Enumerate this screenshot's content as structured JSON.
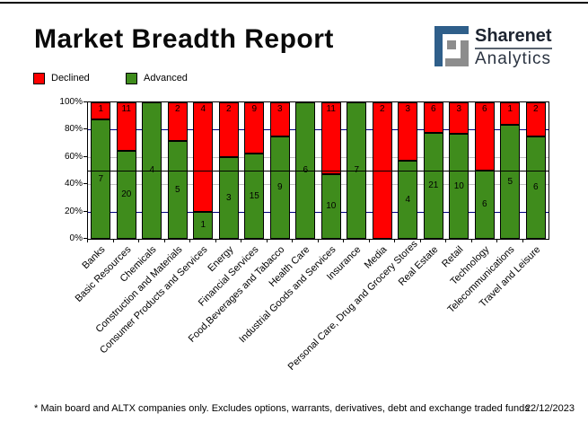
{
  "header": {
    "title": "Market Breadth Report",
    "logo": {
      "line1": "Sharenet",
      "line2": "Analytics",
      "blue": "#2f5f8a",
      "gray": "#8d8d8d"
    }
  },
  "legend": [
    {
      "label": "Declined",
      "color": "#ff0000"
    },
    {
      "label": "Advanced",
      "color": "#3f8c1c"
    }
  ],
  "footer": {
    "note": "* Main board and ALTX companies only. Excludes options, warrants, derivatives, debt and exchange traded funds",
    "date": "22/12/2023"
  },
  "chart_data": {
    "type": "bar",
    "stacked": true,
    "percent_scale": true,
    "title": "Market Breadth Report",
    "xlabel": "",
    "ylabel": "",
    "ylim": [
      0,
      100
    ],
    "y_ticks": [
      "100%",
      "80%",
      "60%",
      "40%",
      "20%",
      "0%"
    ],
    "legend_position": "top-left",
    "grid": {
      "navy_lines_pct": [
        80,
        20
      ],
      "gray_lines_pct": [
        60,
        40
      ],
      "black_line_pct": 50
    },
    "colors": {
      "declined": "#ff0000",
      "advanced": "#3f8c1c",
      "grid_navy": "#000080",
      "grid_gray": "#c0c0c0",
      "grid_black": "#000000"
    },
    "categories": [
      "Banks",
      "Basic Resources",
      "Chemicals",
      "Construction and Materials",
      "Consumer Products and Services",
      "Energy",
      "Financial Services",
      "Food,Beverages and Tabacco",
      "Health Care",
      "Industrial Goods and Services",
      "Insurance",
      "Media",
      "Personal Care, Drug and Grocery Stores",
      "Real Estate",
      "Retail",
      "Technology",
      "Telecommunications",
      "Travel and Leisure"
    ],
    "series": [
      {
        "name": "Declined",
        "color": "#ff0000",
        "values": [
          1,
          11,
          0,
          2,
          4,
          2,
          9,
          3,
          0,
          11,
          0,
          2,
          3,
          6,
          3,
          6,
          1,
          2
        ]
      },
      {
        "name": "Advanced",
        "color": "#3f8c1c",
        "values": [
          7,
          20,
          4,
          5,
          1,
          3,
          15,
          9,
          6,
          10,
          7,
          0,
          4,
          21,
          10,
          6,
          5,
          6
        ]
      }
    ]
  }
}
